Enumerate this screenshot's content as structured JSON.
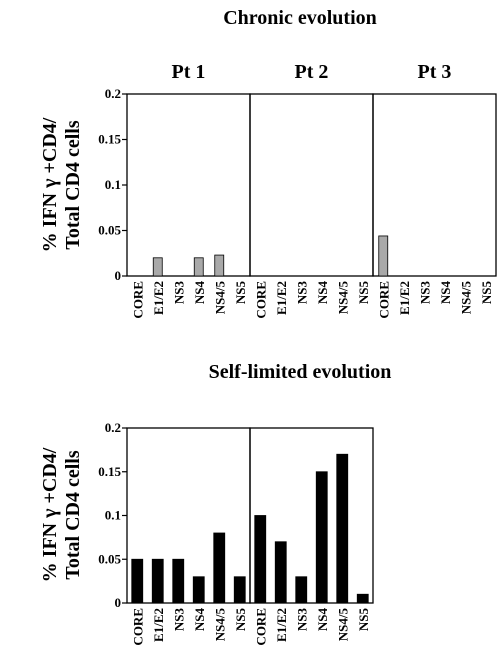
{
  "chart_data": [
    {
      "type": "bar",
      "title": "Chronic evolution",
      "ylabel": [
        "% IFN γ +CD4/",
        "Total CD4 cells"
      ],
      "ylim": [
        0,
        0.2
      ],
      "yticks": [
        "0",
        "0.05",
        "0.1",
        "0.15",
        "0.2"
      ],
      "bar_color": "#a9a9a9",
      "categories": [
        "CORE",
        "E1/E2",
        "NS3",
        "NS4",
        "NS4/5",
        "NS5"
      ],
      "panels": [
        {
          "name": "Pt 1",
          "values": [
            0,
            0.02,
            0,
            0.02,
            0.023,
            0
          ]
        },
        {
          "name": "Pt 2",
          "values": [
            0,
            0,
            0,
            0,
            0,
            0
          ]
        },
        {
          "name": "Pt 3",
          "values": [
            0.044,
            0,
            0,
            0,
            0,
            0
          ]
        }
      ]
    },
    {
      "type": "bar",
      "title": "Self-limited evolution",
      "ylabel": [
        "% IFN γ +CD4/",
        "Total CD4 cells"
      ],
      "ylim": [
        0,
        0.2
      ],
      "yticks": [
        "0",
        "0.05",
        "0.1",
        "0.15",
        "0.2"
      ],
      "bar_color": "#000000",
      "categories": [
        "CORE",
        "E1/E2",
        "NS3",
        "NS4",
        "NS4/5",
        "NS5"
      ],
      "panels": [
        {
          "name": "",
          "values": [
            0.05,
            0.05,
            0.05,
            0.03,
            0.08,
            0.03
          ]
        },
        {
          "name": "",
          "values": [
            0.1,
            0.07,
            0.03,
            0.15,
            0.17,
            0.01
          ]
        }
      ]
    }
  ]
}
